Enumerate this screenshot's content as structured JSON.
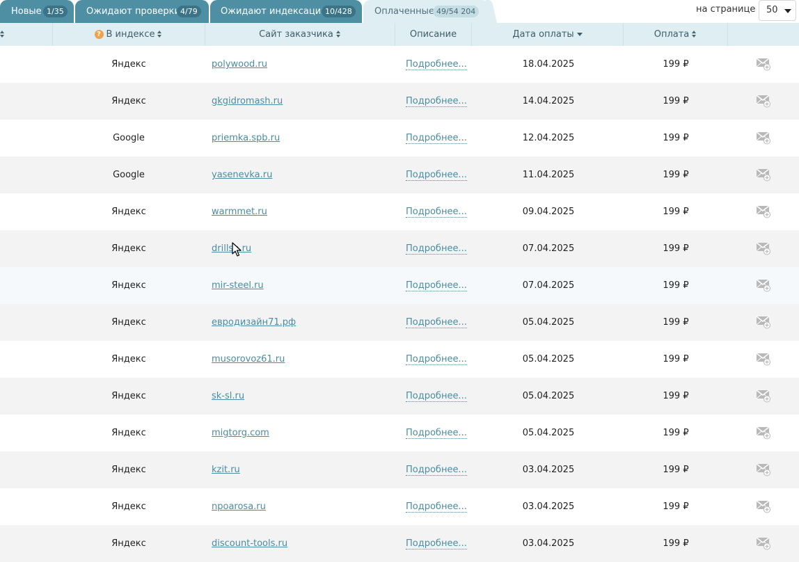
{
  "tabs": [
    {
      "label": "Новые",
      "badge": "1/35"
    },
    {
      "label": "Ожидают проверки",
      "badge": "4/79"
    },
    {
      "label": "Ожидают индексации",
      "badge": "10/428"
    },
    {
      "label": "Оплаченные",
      "badge": "49/54 204"
    }
  ],
  "per_page": {
    "label": "на странице",
    "value": "50"
  },
  "columns": {
    "index": "В индексе",
    "site": "Сайт заказчика",
    "description": "Описание",
    "pay_date": "Дата оплаты",
    "payment": "Оплата"
  },
  "icons": {
    "help": "help-icon",
    "mail": "mail-add-icon",
    "sort": "sort-icon"
  },
  "rows": [
    {
      "index": "Яндекс",
      "site": "polywood.ru",
      "desc": "Подробнее...",
      "date": "18.04.2025",
      "pay": "199 ₽"
    },
    {
      "index": "Яндекс",
      "site": "gkgidromash.ru",
      "desc": "Подробнее...",
      "date": "14.04.2025",
      "pay": "199 ₽"
    },
    {
      "index": "Google",
      "site": "priemka.spb.ru",
      "desc": "Подробнее...",
      "date": "12.04.2025",
      "pay": "199 ₽"
    },
    {
      "index": "Google",
      "site": "yasenevka.ru",
      "desc": "Подробнее...",
      "date": "11.04.2025",
      "pay": "199 ₽"
    },
    {
      "index": "Яндекс",
      "site": "warmmet.ru",
      "desc": "Подробнее...",
      "date": "09.04.2025",
      "pay": "199 ₽"
    },
    {
      "index": "Яндекс",
      "site": "drillsp.ru",
      "desc": "Подробнее...",
      "date": "07.04.2025",
      "pay": "199 ₽"
    },
    {
      "index": "Яндекс",
      "site": "mir-steel.ru",
      "desc": "Подробнее...",
      "date": "07.04.2025",
      "pay": "199 ₽"
    },
    {
      "index": "Яндекс",
      "site": "евродизайн71.рф",
      "desc": "Подробнее...",
      "date": "05.04.2025",
      "pay": "199 ₽"
    },
    {
      "index": "Яндекс",
      "site": "musorovoz61.ru",
      "desc": "Подробнее...",
      "date": "05.04.2025",
      "pay": "199 ₽"
    },
    {
      "index": "Яндекс",
      "site": "sk-sl.ru",
      "desc": "Подробнее...",
      "date": "05.04.2025",
      "pay": "199 ₽"
    },
    {
      "index": "Яндекс",
      "site": "migtorg.com",
      "desc": "Подробнее...",
      "date": "05.04.2025",
      "pay": "199 ₽"
    },
    {
      "index": "Яндекс",
      "site": "kzit.ru",
      "desc": "Подробнее...",
      "date": "03.04.2025",
      "pay": "199 ₽"
    },
    {
      "index": "Яндекс",
      "site": "npoarosa.ru",
      "desc": "Подробнее...",
      "date": "03.04.2025",
      "pay": "199 ₽"
    },
    {
      "index": "Яндекс",
      "site": "discount-tools.ru",
      "desc": "Подробнее...",
      "date": "03.04.2025",
      "pay": "199 ₽"
    }
  ]
}
